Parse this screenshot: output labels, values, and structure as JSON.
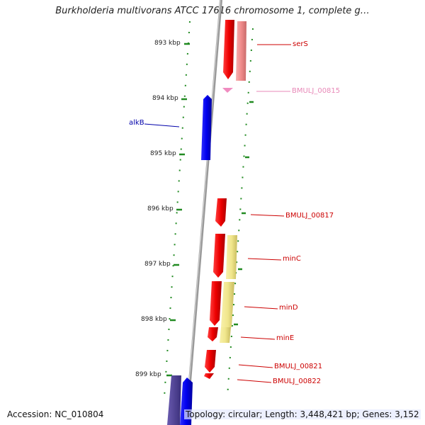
{
  "title": "Burkholderia multivorans ATCC 17616 chromosome 1, complete g…",
  "ruler": {
    "ticks": [
      "893 kbp",
      "894 kbp",
      "895 kbp",
      "896 kbp",
      "897 kbp",
      "898 kbp",
      "899 kbp"
    ]
  },
  "genes": [
    {
      "label": "serS",
      "color": "#cc0000"
    },
    {
      "label": "BMULJ_00815",
      "color": "#e889b8"
    },
    {
      "label": "alkB",
      "color": "#0000aa"
    },
    {
      "label": "BMULJ_00817",
      "color": "#cc0000"
    },
    {
      "label": "minC",
      "color": "#cc0000"
    },
    {
      "label": "minD",
      "color": "#cc0000"
    },
    {
      "label": "minE",
      "color": "#cc0000"
    },
    {
      "label": "BMULJ_00821",
      "color": "#cc0000"
    },
    {
      "label": "BMULJ_00822",
      "color": "#cc0000"
    }
  ],
  "footer": {
    "accession": "Accession: NC_010804",
    "topology": "Topology: circular; Length: 3,448,421 bp; Genes: 3,152"
  },
  "colors": {
    "forward_strand": "#ff0000",
    "reverse_strand": "#0000ee",
    "rna": "#f08cc0",
    "pseudogene_shadow": "#f0e68c",
    "ruler_dots": "#228b22",
    "backbone": "#888888"
  }
}
